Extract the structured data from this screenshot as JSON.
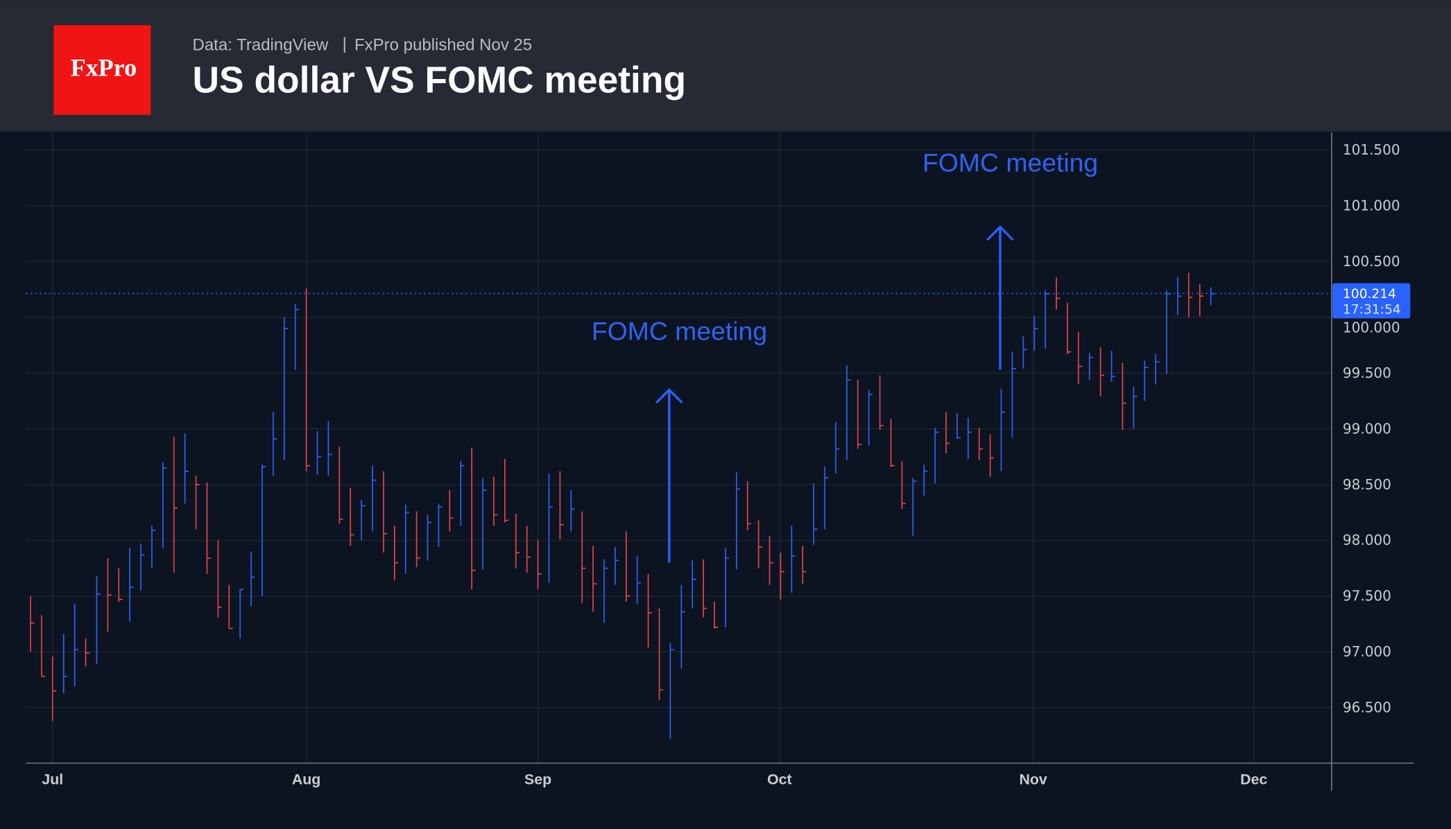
{
  "header": {
    "logo": "FxPro",
    "source": "Data: TradingView",
    "separator": "|",
    "published": "FxPro published Nov 25",
    "title": "US dollar VS FOMC meeting"
  },
  "colors": {
    "up": "#2f5ff0",
    "down": "#e0424d",
    "accent": "#2962ff",
    "logo": "#f01414"
  },
  "chart_data": {
    "type": "ohlc-bar",
    "title": "US dollar VS FOMC meeting",
    "ylim": [
      96.0,
      101.65
    ],
    "y_ticks": [
      "101.500",
      "101.000",
      "100.500",
      "100.000",
      "99.500",
      "99.000",
      "98.500",
      "98.000",
      "97.500",
      "97.000",
      "96.500"
    ],
    "y_tick_values": [
      101.5,
      101.0,
      100.5,
      100.0,
      99.5,
      99.0,
      98.5,
      98.0,
      97.5,
      97.0,
      96.5
    ],
    "x_ticks": [
      {
        "label": "Jul",
        "bar": 2.0
      },
      {
        "label": "Aug",
        "bar": 25.0
      },
      {
        "label": "Sep",
        "bar": 46.0
      },
      {
        "label": "Oct",
        "bar": 67.9
      },
      {
        "label": "Nov",
        "bar": 90.9
      },
      {
        "label": "Dec",
        "bar": 110.9
      }
    ],
    "last_price": {
      "value": 100.214,
      "label": "100.214",
      "countdown": "17:31:54"
    },
    "high": [
      97.5,
      97.33,
      96.96,
      97.16,
      97.43,
      97.12,
      97.68,
      97.84,
      97.75,
      97.93,
      97.97,
      98.13,
      98.7,
      98.93,
      98.96,
      98.58,
      98.52,
      98.0,
      97.6,
      97.56,
      97.9,
      98.68,
      99.15,
      100.0,
      100.12,
      100.26,
      98.98,
      99.07,
      98.84,
      98.47,
      98.36,
      98.67,
      98.62,
      98.13,
      98.32,
      98.26,
      98.23,
      98.33,
      98.45,
      98.71,
      98.83,
      98.56,
      98.57,
      98.73,
      98.24,
      98.13,
      98.0,
      98.6,
      98.62,
      98.45,
      98.26,
      97.95,
      97.83,
      97.94,
      98.08,
      97.86,
      97.7,
      97.39,
      97.08,
      97.6,
      97.82,
      97.83,
      97.45,
      97.93,
      98.61,
      98.53,
      98.18,
      98.04,
      97.89,
      98.13,
      97.95,
      98.51,
      98.66,
      99.06,
      99.57,
      99.44,
      99.35,
      99.48,
      99.09,
      98.71,
      98.56,
      98.68,
      99.01,
      99.15,
      99.14,
      99.1,
      99.01,
      98.95,
      99.36,
      99.69,
      99.83,
      100.01,
      100.24,
      100.36,
      100.13,
      99.87,
      99.68,
      99.73,
      99.7,
      99.59,
      99.38,
      99.61,
      99.67,
      100.24,
      100.36,
      100.4,
      100.3,
      100.27
    ],
    "low": [
      97.0,
      96.78,
      96.38,
      96.63,
      96.69,
      96.87,
      96.89,
      97.18,
      97.45,
      97.27,
      97.55,
      97.75,
      97.93,
      97.71,
      98.33,
      98.1,
      97.7,
      97.31,
      97.21,
      97.12,
      97.41,
      97.5,
      98.58,
      98.72,
      99.53,
      98.62,
      98.59,
      98.58,
      98.15,
      97.95,
      98.0,
      98.08,
      97.89,
      97.64,
      97.7,
      97.76,
      97.82,
      97.94,
      98.08,
      98.13,
      97.56,
      97.74,
      98.13,
      98.16,
      97.75,
      97.71,
      97.56,
      97.62,
      98.01,
      98.08,
      97.44,
      97.36,
      97.26,
      97.6,
      97.45,
      97.43,
      97.04,
      96.57,
      96.22,
      96.85,
      97.39,
      97.31,
      97.21,
      97.22,
      97.74,
      98.09,
      97.75,
      97.6,
      97.47,
      97.53,
      97.61,
      97.96,
      98.1,
      98.6,
      98.72,
      98.82,
      98.85,
      98.99,
      98.66,
      98.28,
      98.04,
      98.4,
      98.51,
      98.78,
      98.91,
      98.73,
      98.72,
      98.57,
      98.62,
      98.92,
      99.54,
      99.7,
      99.72,
      100.07,
      99.67,
      99.4,
      99.44,
      99.29,
      99.42,
      98.99,
      99.0,
      99.25,
      99.4,
      99.49,
      100.02,
      100.0,
      100.01,
      100.11
    ],
    "close": [
      97.26,
      96.78,
      96.65,
      96.78,
      97.02,
      96.99,
      97.52,
      97.51,
      97.47,
      97.58,
      97.87,
      98.09,
      98.65,
      98.29,
      98.62,
      98.5,
      97.84,
      97.4,
      97.21,
      97.56,
      97.67,
      98.66,
      98.91,
      99.9,
      100.07,
      98.67,
      98.75,
      98.77,
      98.19,
      98.05,
      98.31,
      98.54,
      98.06,
      97.8,
      98.25,
      97.84,
      98.16,
      98.3,
      98.2,
      98.67,
      97.73,
      98.45,
      98.23,
      98.18,
      97.89,
      97.85,
      97.7,
      98.3,
      98.14,
      98.28,
      97.75,
      97.61,
      97.75,
      97.82,
      97.5,
      97.62,
      97.35,
      96.66,
      97.02,
      97.36,
      97.65,
      97.39,
      97.22,
      97.84,
      98.46,
      98.15,
      97.94,
      97.8,
      97.72,
      97.86,
      97.72,
      98.1,
      98.56,
      98.82,
      99.44,
      98.86,
      99.31,
      99.03,
      98.67,
      98.33,
      98.53,
      98.62,
      98.97,
      98.87,
      98.92,
      98.97,
      98.82,
      98.74,
      99.15,
      99.54,
      99.71,
      99.9,
      100.21,
      100.17,
      99.69,
      99.56,
      99.64,
      99.48,
      99.47,
      99.23,
      99.29,
      99.55,
      99.6,
      100.21,
      100.19,
      100.18,
      100.19,
      100.21
    ],
    "up": [
      0,
      0,
      0,
      1,
      1,
      0,
      1,
      0,
      0,
      1,
      1,
      1,
      1,
      0,
      1,
      0,
      0,
      0,
      0,
      1,
      1,
      1,
      1,
      1,
      1,
      0,
      1,
      1,
      0,
      0,
      1,
      1,
      0,
      0,
      1,
      0,
      1,
      1,
      0,
      1,
      0,
      1,
      0,
      0,
      0,
      0,
      0,
      1,
      0,
      1,
      0,
      0,
      1,
      1,
      0,
      1,
      0,
      0,
      1,
      1,
      1,
      0,
      0,
      1,
      1,
      0,
      0,
      0,
      0,
      1,
      0,
      1,
      1,
      1,
      1,
      0,
      1,
      0,
      0,
      0,
      1,
      1,
      1,
      0,
      1,
      1,
      0,
      0,
      1,
      1,
      1,
      1,
      1,
      0,
      0,
      0,
      1,
      0,
      1,
      0,
      1,
      1,
      1,
      1,
      1,
      0,
      0,
      1
    ],
    "annotations": [
      {
        "text": "FOMC meeting",
        "bar": 57.9,
        "arrow_from": 97.8,
        "arrow_to": 99.35,
        "text_price": 99.88
      },
      {
        "text": "FOMC meeting",
        "bar": 87.9,
        "arrow_from": 99.53,
        "arrow_to": 100.81,
        "text_price": 101.39
      }
    ]
  }
}
